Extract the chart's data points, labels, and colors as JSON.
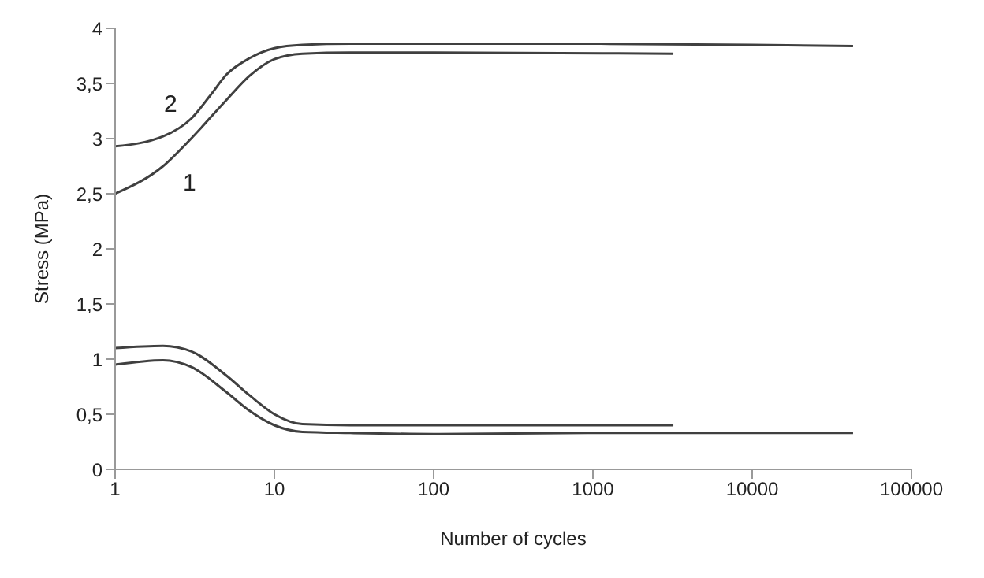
{
  "chart_data": {
    "type": "line",
    "xlabel": "Number of cycles",
    "ylabel": "Stress (MPa)",
    "log": "x",
    "xlim": [
      1,
      100000
    ],
    "xticks": [
      1,
      10,
      100,
      1000,
      10000,
      100000
    ],
    "ylim": [
      0,
      4
    ],
    "yticks": [
      0,
      {
        "value": 0.5,
        "label": "0,5"
      },
      1,
      {
        "value": 1.5,
        "label": "1,5"
      },
      2,
      {
        "value": 2.5,
        "label": "2,5"
      },
      3,
      {
        "value": 3.5,
        "label": "3,5"
      },
      4
    ],
    "grid": false,
    "marker": "none",
    "line_style": "solid",
    "annotations": [
      "2",
      "1"
    ],
    "series": [
      {
        "color": "#404040",
        "x": [
          1,
          2,
          3,
          4,
          5,
          7,
          10,
          15,
          30,
          100,
          1000,
          10000,
          43000
        ],
        "values": [
          2.93,
          3.02,
          3.18,
          3.4,
          3.58,
          3.73,
          3.82,
          3.85,
          3.86,
          3.86,
          3.86,
          3.85,
          3.84
        ]
      },
      {
        "color": "#404040",
        "x": [
          1,
          2,
          3,
          5,
          7,
          10,
          15,
          30,
          100,
          3200
        ],
        "values": [
          2.5,
          2.75,
          3.0,
          3.35,
          3.57,
          3.72,
          3.77,
          3.78,
          3.78,
          3.77
        ]
      },
      {
        "color": "#404040",
        "x": [
          1,
          2,
          3,
          5,
          7,
          10,
          15,
          30,
          100,
          3200
        ],
        "values": [
          1.1,
          1.12,
          1.07,
          0.85,
          0.67,
          0.5,
          0.41,
          0.4,
          0.4,
          0.4
        ]
      },
      {
        "color": "#404040",
        "x": [
          1,
          2,
          3,
          5,
          7,
          10,
          15,
          30,
          100,
          1000,
          43000
        ],
        "values": [
          0.95,
          0.99,
          0.93,
          0.7,
          0.53,
          0.4,
          0.34,
          0.33,
          0.32,
          0.33,
          0.33
        ]
      }
    ]
  }
}
